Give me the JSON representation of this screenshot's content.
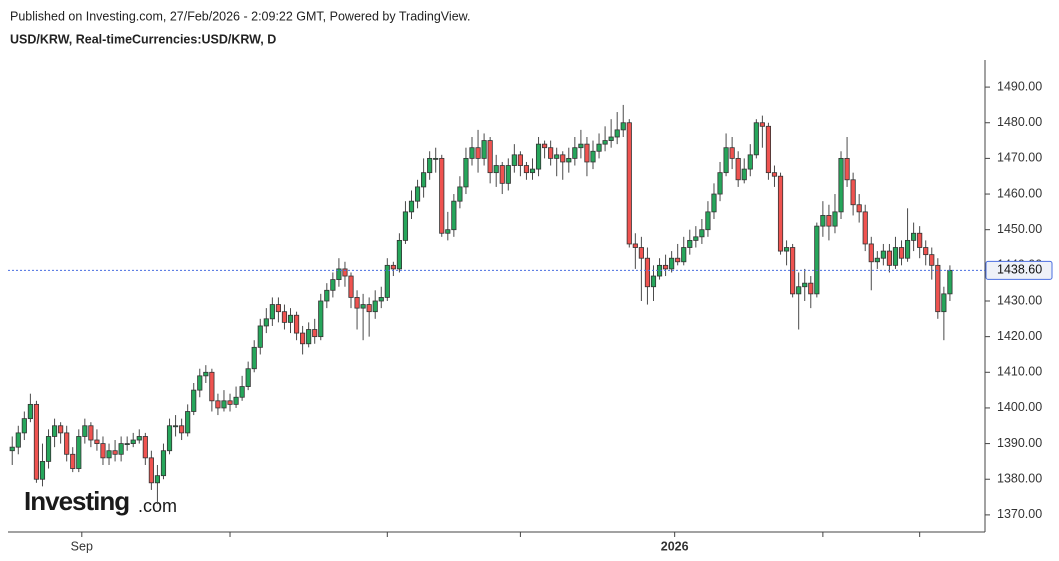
{
  "header": {
    "published": "Published on Investing.com, 27/Feb/2026 - 2:09:22 GMT, Powered by TradingView.",
    "symbol": "USD/KRW, Real-timeCurrencies:USD/KRW, D"
  },
  "logo": {
    "name": "Investing",
    "suffix": ".com"
  },
  "chart_data": {
    "type": "candlestick",
    "up_color": "#26a65b",
    "down_color": "#ef5350",
    "wick_color": "#4a4a4a",
    "ylim": [
      1365.2,
      1497.6
    ],
    "xlim": [
      -0.7,
      160.8
    ],
    "yticks": [
      {
        "value": 1370,
        "label": "1370.00"
      },
      {
        "value": 1380,
        "label": "1380.00"
      },
      {
        "value": 1390,
        "label": "1390.00"
      },
      {
        "value": 1400,
        "label": "1400.00"
      },
      {
        "value": 1410,
        "label": "1410.00"
      },
      {
        "value": 1420,
        "label": "1420.00"
      },
      {
        "value": 1430,
        "label": "1430.00"
      },
      {
        "value": 1440,
        "label": "1440.00"
      },
      {
        "value": 1450,
        "label": "1450.00"
      },
      {
        "value": 1460,
        "label": "1460.00"
      },
      {
        "value": 1470,
        "label": "1470.00"
      },
      {
        "value": 1480,
        "label": "1480.00"
      },
      {
        "value": 1490,
        "label": "1490.00"
      }
    ],
    "xticks": [
      {
        "value": 11.5,
        "label": "Sep"
      },
      36,
      62,
      84,
      {
        "value": 109.5,
        "label": "2026"
      },
      134,
      150
    ],
    "last_price": {
      "value": 1438.6,
      "label": "1438.60"
    },
    "last_price_color": "#4a6ee0",
    "open": [
      1388,
      1389,
      1393,
      1397,
      1401,
      1380,
      1385,
      1392,
      1395,
      1393,
      1387,
      1383,
      1392,
      1395,
      1391,
      1390,
      1386,
      1388,
      1387,
      1390,
      1390,
      1391,
      1392,
      1386,
      1379,
      1381,
      1388,
      1395,
      1395,
      1393,
      1399,
      1405,
      1409,
      1410,
      1402,
      1400,
      1402,
      1401,
      1403,
      1406,
      1411,
      1417,
      1423,
      1425,
      1429,
      1427,
      1424,
      1426,
      1421,
      1418,
      1422,
      1420,
      1430,
      1433,
      1436,
      1439,
      1437,
      1431,
      1428,
      1429,
      1427,
      1430,
      1431,
      1440,
      1439,
      1447,
      1455,
      1458,
      1462,
      1466,
      1470,
      1470,
      1449,
      1450,
      1458,
      1462,
      1470,
      1473,
      1470,
      1475,
      1466,
      1468,
      1463,
      1468,
      1471,
      1468,
      1466,
      1467,
      1474,
      1473,
      1470,
      1471,
      1469,
      1470,
      1473,
      1474,
      1469,
      1472,
      1474,
      1475,
      1476,
      1478,
      1480,
      1446,
      1445,
      1442,
      1434,
      1437,
      1440,
      1439,
      1442,
      1441,
      1445,
      1447,
      1448,
      1450,
      1455,
      1460,
      1466,
      1473,
      1470,
      1464,
      1467,
      1471,
      1480,
      1479,
      1466,
      1465,
      1444,
      1445,
      1432,
      1434,
      1435,
      1432,
      1451,
      1454,
      1451,
      1455,
      1470,
      1464,
      1457,
      1455,
      1446,
      1441,
      1442,
      1444,
      1440,
      1445,
      1442,
      1447,
      1449,
      1445,
      1443,
      1440,
      1427,
      1432
    ],
    "high": [
      1392,
      1395,
      1399,
      1404,
      1402,
      1390,
      1394,
      1397,
      1396,
      1395,
      1389,
      1394,
      1397,
      1396,
      1394,
      1392,
      1390,
      1391,
      1392,
      1392,
      1393,
      1394,
      1393,
      1388,
      1384,
      1390,
      1397,
      1398,
      1397,
      1401,
      1407,
      1411,
      1412,
      1411,
      1404,
      1405,
      1404,
      1406,
      1409,
      1413,
      1419,
      1425,
      1428,
      1431,
      1431,
      1429,
      1428,
      1427,
      1423,
      1424,
      1425,
      1432,
      1435,
      1438,
      1442,
      1441,
      1438,
      1433,
      1432,
      1431,
      1433,
      1434,
      1442,
      1441,
      1449,
      1458,
      1461,
      1464,
      1470,
      1472,
      1473,
      1471,
      1455,
      1460,
      1465,
      1473,
      1476,
      1478,
      1477,
      1476,
      1471,
      1469,
      1470,
      1474,
      1472,
      1469,
      1470,
      1476,
      1475,
      1475,
      1473,
      1472,
      1473,
      1476,
      1478,
      1476,
      1475,
      1477,
      1479,
      1481,
      1483,
      1485,
      1481,
      1449,
      1448,
      1445,
      1440,
      1442,
      1443,
      1444,
      1446,
      1448,
      1450,
      1451,
      1453,
      1458,
      1463,
      1469,
      1477,
      1476,
      1472,
      1470,
      1474,
      1481,
      1482,
      1480,
      1468,
      1466,
      1447,
      1446,
      1438,
      1439,
      1437,
      1452,
      1458,
      1457,
      1460,
      1472,
      1476,
      1466,
      1460,
      1457,
      1448,
      1444,
      1446,
      1446,
      1448,
      1447,
      1456,
      1452,
      1451,
      1447,
      1445,
      1442,
      1434,
      1440
    ],
    "low": [
      1384,
      1387,
      1391,
      1396,
      1379,
      1378,
      1383,
      1389,
      1390,
      1385,
      1382,
      1382,
      1390,
      1389,
      1388,
      1384,
      1384,
      1385,
      1385,
      1388,
      1389,
      1390,
      1384,
      1377,
      1373,
      1380,
      1387,
      1392,
      1391,
      1392,
      1398,
      1403,
      1407,
      1399,
      1398,
      1399,
      1399,
      1400,
      1402,
      1405,
      1410,
      1415,
      1421,
      1423,
      1424,
      1422,
      1421,
      1419,
      1415,
      1417,
      1418,
      1419,
      1428,
      1431,
      1434,
      1434,
      1428,
      1422,
      1419,
      1420,
      1425,
      1428,
      1430,
      1437,
      1438,
      1446,
      1453,
      1456,
      1459,
      1464,
      1466,
      1448,
      1447,
      1448,
      1456,
      1460,
      1468,
      1466,
      1468,
      1463,
      1462,
      1460,
      1461,
      1466,
      1465,
      1464,
      1464,
      1465,
      1470,
      1468,
      1465,
      1464,
      1466,
      1468,
      1470,
      1465,
      1467,
      1470,
      1472,
      1473,
      1474,
      1476,
      1445,
      1439,
      1430,
      1429,
      1430,
      1436,
      1437,
      1438,
      1440,
      1440,
      1443,
      1445,
      1446,
      1448,
      1453,
      1458,
      1465,
      1467,
      1462,
      1463,
      1465,
      1470,
      1473,
      1464,
      1462,
      1443,
      1440,
      1431,
      1422,
      1430,
      1428,
      1431,
      1448,
      1447,
      1449,
      1453,
      1462,
      1454,
      1452,
      1444,
      1433,
      1439,
      1440,
      1438,
      1439,
      1440,
      1441,
      1444,
      1442,
      1440,
      1436,
      1425,
      1419,
      1430
    ],
    "close": [
      1389,
      1393,
      1397,
      1401,
      1380,
      1385,
      1392,
      1395,
      1393,
      1387,
      1383,
      1392,
      1395,
      1391,
      1390,
      1386,
      1388,
      1387,
      1390,
      1390,
      1391,
      1392,
      1386,
      1379,
      1381,
      1388,
      1395,
      1395,
      1393,
      1399,
      1405,
      1409,
      1410,
      1402,
      1400,
      1402,
      1401,
      1403,
      1406,
      1411,
      1417,
      1423,
      1425,
      1429,
      1427,
      1424,
      1426,
      1421,
      1418,
      1422,
      1420,
      1430,
      1433,
      1436,
      1439,
      1437,
      1431,
      1428,
      1429,
      1427,
      1430,
      1431,
      1440,
      1439,
      1447,
      1455,
      1458,
      1462,
      1466,
      1470,
      1470,
      1449,
      1450,
      1458,
      1462,
      1470,
      1473,
      1470,
      1475,
      1466,
      1468,
      1463,
      1468,
      1471,
      1468,
      1466,
      1467,
      1474,
      1473,
      1470,
      1471,
      1469,
      1470,
      1473,
      1474,
      1469,
      1472,
      1474,
      1475,
      1476,
      1478,
      1480,
      1446,
      1445,
      1442,
      1434,
      1437,
      1440,
      1439,
      1442,
      1441,
      1445,
      1447,
      1448,
      1450,
      1455,
      1460,
      1466,
      1473,
      1470,
      1464,
      1467,
      1471,
      1480,
      1479,
      1466,
      1465,
      1444,
      1445,
      1432,
      1434,
      1435,
      1432,
      1451,
      1454,
      1451,
      1455,
      1470,
      1464,
      1457,
      1455,
      1446,
      1441,
      1442,
      1444,
      1440,
      1445,
      1442,
      1447,
      1449,
      1445,
      1443,
      1440,
      1427,
      1432,
      1438.6
    ]
  }
}
